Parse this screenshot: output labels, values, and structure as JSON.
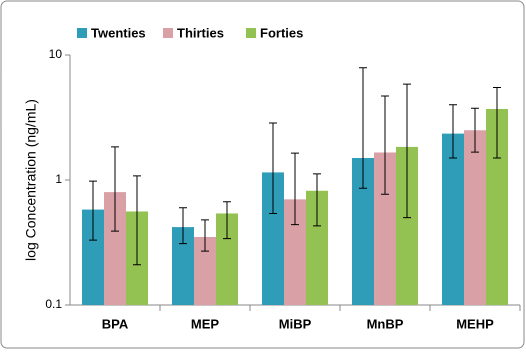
{
  "chart_data": {
    "type": "bar",
    "ylabel": "log Concentration (ng/mL)",
    "categories": [
      "BPA",
      "MEP",
      "MiBP",
      "MnBP",
      "MEHP"
    ],
    "series": [
      {
        "name": "Twenties",
        "color": "#2f9db8",
        "values": [
          0.58,
          0.42,
          1.15,
          1.5,
          2.35
        ],
        "error_lower": [
          0.33,
          0.31,
          0.54,
          0.86,
          1.5
        ],
        "error_upper": [
          0.98,
          0.6,
          2.86,
          7.9,
          4.0
        ]
      },
      {
        "name": "Thirties",
        "color": "#d9a0a6",
        "values": [
          0.8,
          0.35,
          0.7,
          1.66,
          2.5
        ],
        "error_lower": [
          0.39,
          0.27,
          0.44,
          0.77,
          1.67
        ],
        "error_upper": [
          1.84,
          0.48,
          1.64,
          4.7,
          3.75
        ]
      },
      {
        "name": "Forties",
        "color": "#93c152",
        "values": [
          0.56,
          0.54,
          0.82,
          1.84,
          3.7
        ],
        "error_lower": [
          0.21,
          0.34,
          0.43,
          0.5,
          1.5
        ],
        "error_upper": [
          1.08,
          0.67,
          1.12,
          5.85,
          5.5
        ]
      }
    ],
    "ylim": [
      0.1,
      10
    ],
    "yticks": [
      0.1,
      1,
      10
    ],
    "log_scale": true,
    "grid": false,
    "legend": "top"
  }
}
